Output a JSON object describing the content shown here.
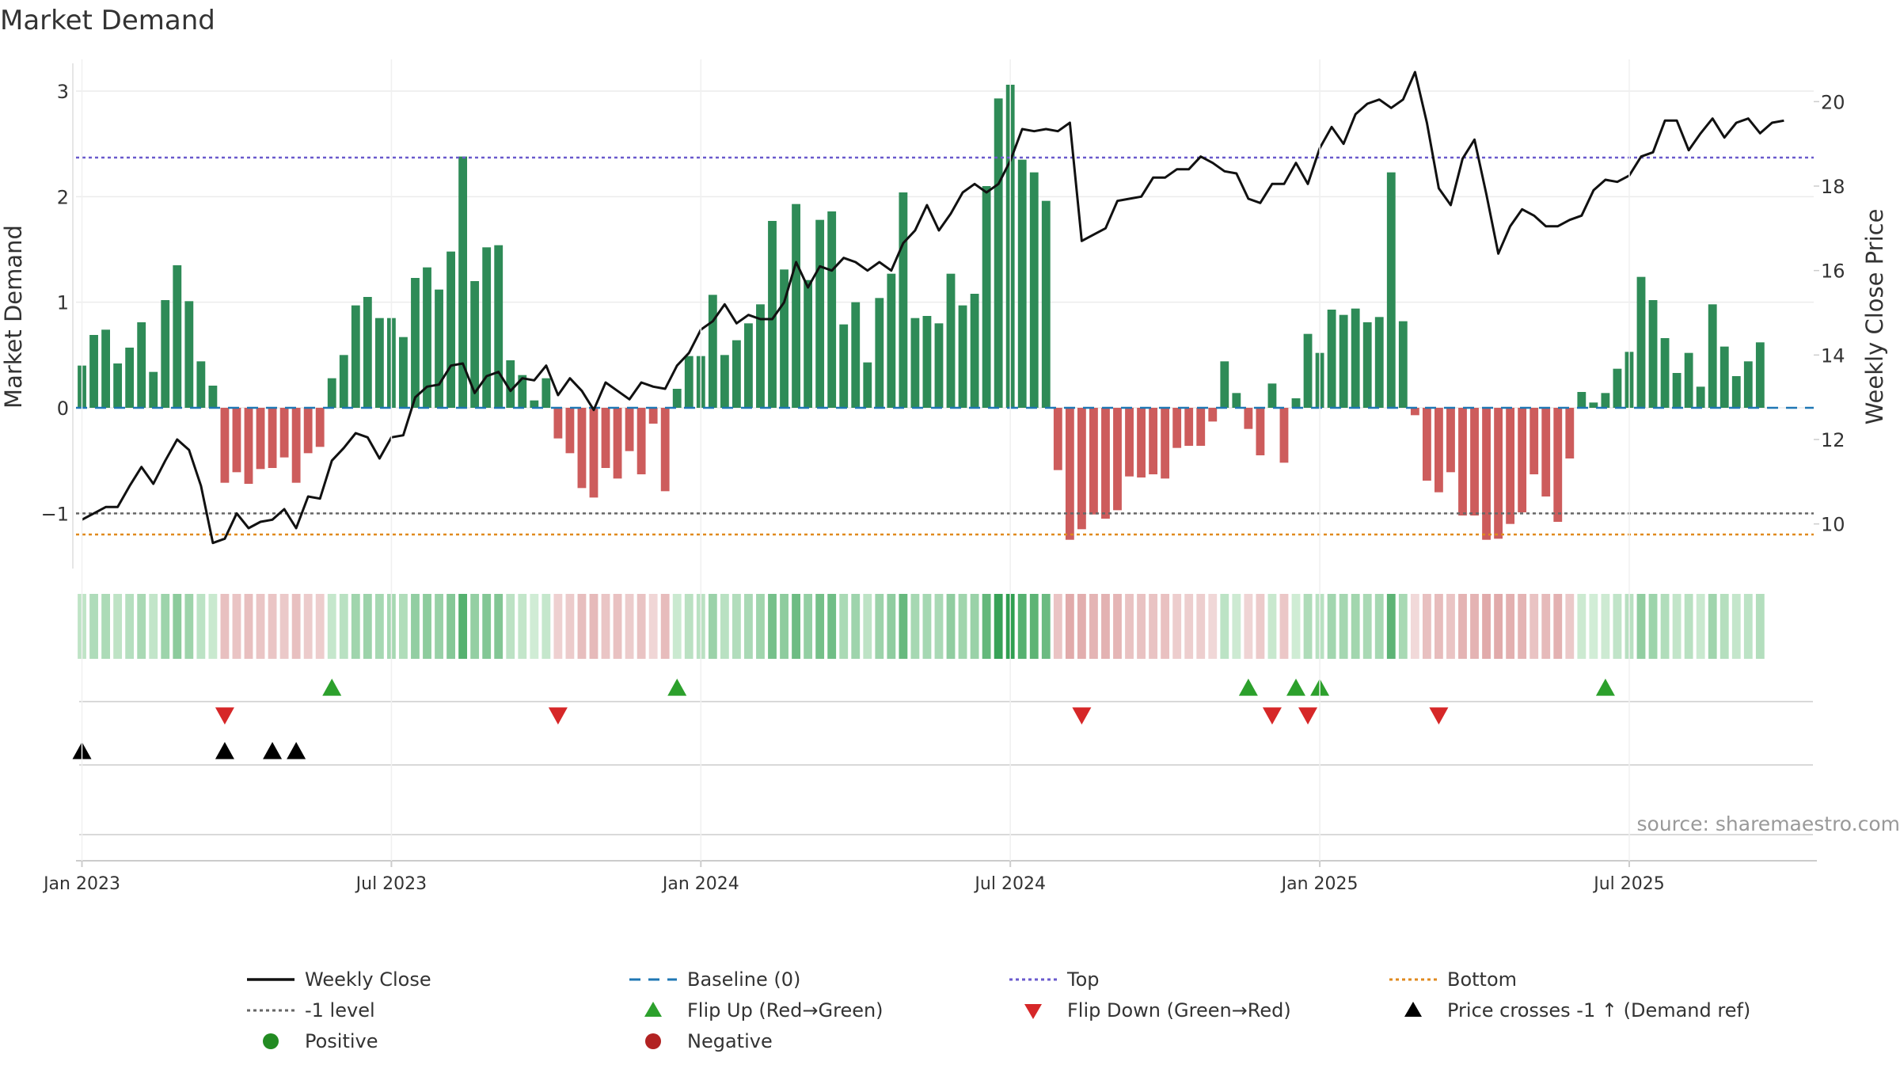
{
  "chart_data": {
    "type": "bar",
    "title": "Market Demand",
    "ylabel": "Market Demand",
    "y2label": "Weekly Close Price",
    "source": "source: sharemaestro.com",
    "ylim": [
      -1.5,
      3.3
    ],
    "y2lim": [
      9.0,
      21.0
    ],
    "yticks": [
      3,
      2,
      1,
      0,
      -1
    ],
    "ytick_labels": [
      "3",
      "2",
      "1",
      "0",
      "−1"
    ],
    "y2ticks": [
      20,
      18,
      16,
      14,
      12,
      10
    ],
    "y2tick_labels": [
      "20",
      "18",
      "16",
      "14",
      "12",
      "10"
    ],
    "x_weeks": 146,
    "x_tick_weeks": [
      0,
      26,
      52,
      78,
      104,
      130
    ],
    "x_tick_labels": [
      "Jan 2023",
      "Jul 2023",
      "Jan 2024",
      "Jul 2024",
      "Jan 2025",
      "Jul 2025"
    ],
    "top_level": 2.37,
    "minus_one_level": -1.0,
    "bottom_level": -1.2,
    "demand": [
      0.4,
      0.69,
      0.74,
      0.42,
      0.57,
      0.81,
      0.34,
      1.02,
      1.35,
      1.01,
      0.44,
      0.21,
      -0.71,
      -0.61,
      -0.72,
      -0.58,
      -0.57,
      -0.47,
      -0.71,
      -0.43,
      -0.37,
      0.28,
      0.5,
      0.97,
      1.05,
      0.85,
      0.85,
      0.67,
      1.23,
      1.33,
      1.12,
      1.48,
      2.38,
      1.2,
      1.52,
      1.54,
      0.45,
      0.31,
      0.07,
      0.28,
      -0.29,
      -0.43,
      -0.76,
      -0.85,
      -0.57,
      -0.67,
      -0.41,
      -0.63,
      -0.15,
      -0.79,
      0.18,
      0.49,
      0.49,
      1.07,
      0.5,
      0.64,
      0.8,
      0.98,
      1.77,
      1.31,
      1.93,
      1.21,
      1.78,
      1.86,
      0.79,
      1.0,
      0.43,
      1.04,
      1.27,
      2.04,
      0.85,
      0.87,
      0.8,
      1.27,
      0.97,
      1.08,
      2.1,
      2.93,
      3.06,
      2.35,
      2.23,
      1.96,
      -0.59,
      -1.25,
      -1.15,
      -1.01,
      -1.05,
      -0.97,
      -0.65,
      -0.66,
      -0.63,
      -0.67,
      -0.38,
      -0.36,
      -0.36,
      -0.13,
      0.44,
      0.14,
      -0.2,
      -0.45,
      0.23,
      -0.52,
      0.09,
      0.7,
      0.52,
      0.93,
      0.88,
      0.94,
      0.81,
      0.86,
      2.23,
      0.82,
      -0.07,
      -0.69,
      -0.8,
      -0.61,
      -1.02,
      -1.02,
      -1.25,
      -1.24,
      -1.1,
      -0.99,
      -0.63,
      -0.84,
      -1.08,
      -0.48,
      0.15,
      0.05,
      0.14,
      0.37,
      0.53,
      1.24,
      1.02,
      0.66,
      0.33,
      0.52,
      0.2,
      0.98,
      0.58,
      0.3,
      0.44,
      0.62
    ],
    "close": [
      10.1,
      10.25,
      10.4,
      10.4,
      10.9,
      11.35,
      10.95,
      11.5,
      12.0,
      11.75,
      10.9,
      9.55,
      9.65,
      10.25,
      9.9,
      10.05,
      10.1,
      10.35,
      9.9,
      10.65,
      10.6,
      11.5,
      11.8,
      12.15,
      12.05,
      11.55,
      12.05,
      12.1,
      13.0,
      13.25,
      13.3,
      13.75,
      13.8,
      13.1,
      13.5,
      13.6,
      13.15,
      13.45,
      13.4,
      13.75,
      13.05,
      13.45,
      13.15,
      12.7,
      13.35,
      13.15,
      12.95,
      13.35,
      13.25,
      13.2,
      13.75,
      14.05,
      14.6,
      14.8,
      15.2,
      14.75,
      14.95,
      14.85,
      14.85,
      15.25,
      16.2,
      15.6,
      16.1,
      16.0,
      16.3,
      16.2,
      16.0,
      16.2,
      16.0,
      16.65,
      16.95,
      17.55,
      16.95,
      17.35,
      17.85,
      18.05,
      17.85,
      18.05,
      18.6,
      19.35,
      19.3,
      19.35,
      19.3,
      19.5,
      16.7,
      16.85,
      17.0,
      17.65,
      17.7,
      17.75,
      18.2,
      18.2,
      18.4,
      18.4,
      18.7,
      18.55,
      18.35,
      18.3,
      17.7,
      17.6,
      18.05,
      18.05,
      18.55,
      18.05,
      18.9,
      19.4,
      19.0,
      19.7,
      19.95,
      20.05,
      19.85,
      20.05,
      20.7,
      19.5,
      17.95,
      17.55,
      18.65,
      19.1,
      17.8,
      16.4,
      17.05,
      17.45,
      17.3,
      17.05,
      17.05,
      17.2,
      17.3,
      17.9,
      18.15,
      18.1,
      18.25,
      18.7,
      18.8,
      19.55,
      19.55,
      18.85,
      19.25,
      19.6,
      19.15,
      19.5,
      19.6,
      19.25,
      19.5,
      19.55
    ],
    "flip_up_weeks": [
      21,
      50,
      98,
      102,
      104,
      128
    ],
    "flip_down_weeks": [
      12,
      40,
      84,
      100,
      103,
      114
    ],
    "price_cross_weeks": [
      0,
      12,
      16,
      18
    ],
    "legend": [
      [
        "Weekly Close",
        "Baseline (0)",
        "Top",
        "Bottom"
      ],
      [
        "-1 level",
        "Flip Up (Red→Green)",
        "Flip Down (Green→Red)",
        "Price crosses -1 ↑ (Demand ref)"
      ],
      [
        "Positive",
        "Negative"
      ]
    ],
    "colors": {
      "positive_bar": "#2e8b57",
      "negative_bar": "#cd5c5c",
      "close_line": "#111111",
      "baseline": "#1f77b4",
      "top": "#6a5acd",
      "minus_one": "#666666",
      "bottom": "#e08a1e",
      "flip_up": "#2ca02c",
      "flip_down": "#d62728",
      "price_cross": "#000000",
      "positive_dot": "#228b22",
      "negative_dot": "#b22222"
    }
  }
}
